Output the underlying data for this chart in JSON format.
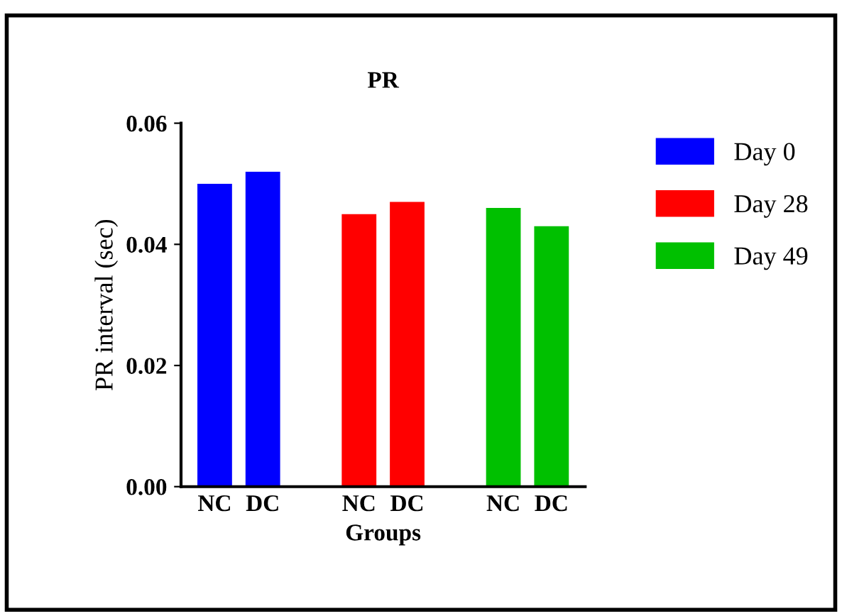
{
  "chart_data": {
    "type": "bar",
    "title": "PR",
    "xlabel": "Groups",
    "ylabel": "PR interval (sec)",
    "categories": [
      "NC",
      "DC",
      null,
      "NC",
      "DC",
      null,
      "NC",
      "DC"
    ],
    "series": [
      {
        "name": "Day 0",
        "color": "#0000ff",
        "values": [
          0.05,
          0.052,
          null,
          null,
          null,
          null,
          null,
          null
        ]
      },
      {
        "name": "Day 28",
        "color": "#ff0000",
        "values": [
          null,
          null,
          null,
          0.045,
          0.047,
          null,
          null,
          null
        ]
      },
      {
        "name": "Day 49",
        "color": "#00c000",
        "values": [
          null,
          null,
          null,
          null,
          null,
          null,
          0.046,
          0.043
        ]
      }
    ],
    "ylim": [
      0,
      0.06
    ],
    "yticks": [
      {
        "value": 0,
        "label": "0.00"
      },
      {
        "value": 0.02,
        "label": "0.02"
      },
      {
        "value": 0.04,
        "label": "0.04"
      },
      {
        "value": 0.06,
        "label": "0.06"
      }
    ],
    "grid": false,
    "legend": "right"
  }
}
